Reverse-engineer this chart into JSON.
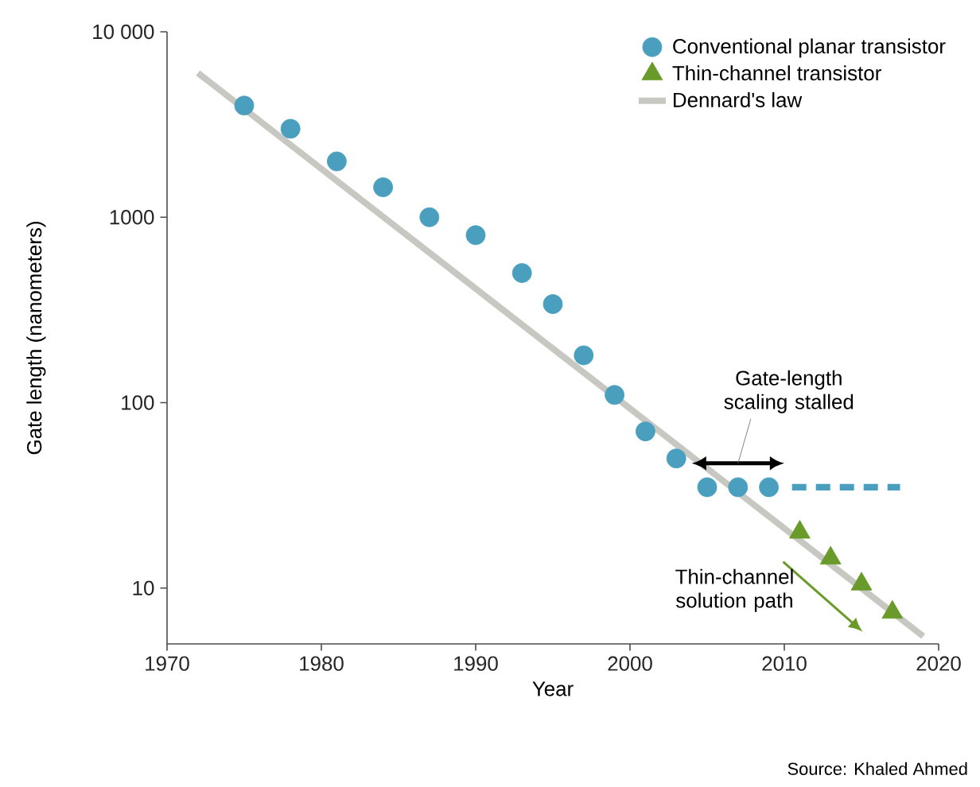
{
  "chart_data": {
    "type": "scatter",
    "xlabel": "Year",
    "ylabel": "Gate length (nanometers)",
    "log": "y",
    "grid": false,
    "legend": "top right",
    "xlim": [
      1970,
      2020
    ],
    "xticks": [
      1970,
      1980,
      1990,
      2000,
      2010,
      2020
    ],
    "ylim": [
      5,
      10000
    ],
    "yticks": [
      10,
      100,
      1000,
      {
        "value": 10000,
        "label": "10 000"
      }
    ],
    "series": [
      {
        "name": "Conventional planar transistor",
        "marker": "circle",
        "color": "#4a9fbf",
        "x": [
          1975,
          1978,
          1981,
          1984,
          1987,
          1990,
          1993,
          1995,
          1997,
          1999,
          2001,
          2003,
          2005,
          2007,
          2009
        ],
        "values": [
          4000,
          3000,
          2000,
          1450,
          1000,
          800,
          500,
          340,
          180,
          110,
          70,
          50,
          35,
          35,
          35
        ]
      },
      {
        "name": "Thin-channel transistor",
        "marker": "triangle",
        "color": "#6a9a2a",
        "x": [
          2011,
          2013,
          2015,
          2017
        ],
        "values": [
          20,
          14.5,
          10.5,
          7.4
        ]
      },
      {
        "name": "Dennard's law",
        "type": "line",
        "marker": "none",
        "line_style": "solid",
        "color": "#c8c8c2",
        "x": [
          1972,
          2019
        ],
        "values": [
          6000,
          5.5
        ]
      },
      {
        "type": "line",
        "marker": "none",
        "line_style": "dashed",
        "color": "#4a9fbf",
        "x": [
          2010.5,
          2017.5
        ],
        "values": [
          35,
          35
        ]
      }
    ],
    "annotations": [
      "Gate-length scaling stalled",
      "Thin-channel solution path",
      "Source: Khaled Ahmed"
    ]
  }
}
